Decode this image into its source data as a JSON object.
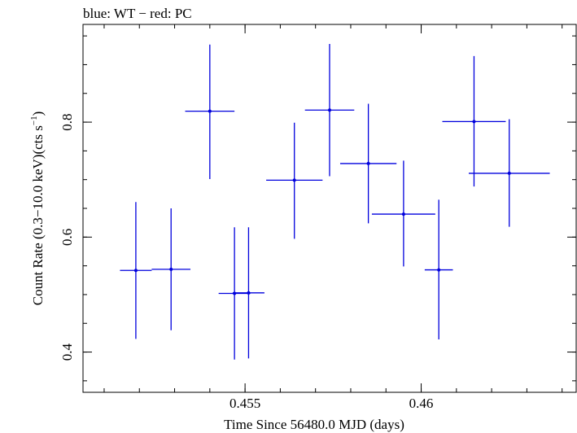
{
  "chart_data": {
    "type": "scatter",
    "title": "blue: WT − red: PC",
    "xlabel": "Time Since 56480.0 MJD (days)",
    "ylabel": "Count Rate (0.3−10.0 keV)(cts s",
    "ylabel_sup": "−1",
    "ylabel_close": ")",
    "xlim": [
      0.4504,
      0.4644
    ],
    "ylim": [
      0.33,
      0.97
    ],
    "x_ticks": [
      {
        "value": 0.455,
        "label": "0.455"
      },
      {
        "value": 0.46,
        "label": "0.46"
      }
    ],
    "x_minor_step": 0.001,
    "y_ticks": [
      {
        "value": 0.4,
        "label": "0.4"
      },
      {
        "value": 0.6,
        "label": "0.6"
      },
      {
        "value": 0.8,
        "label": "0.8"
      }
    ],
    "y_minor_step": 0.05,
    "grid": false,
    "series": [
      {
        "color": "#0000dd",
        "points": [
          {
            "x": 0.4519,
            "y": 0.542,
            "xerr": 0.00045,
            "ylo": 0.423,
            "yhi": 0.661
          },
          {
            "x": 0.4529,
            "y": 0.544,
            "xerr": 0.00055,
            "ylo": 0.438,
            "yhi": 0.65
          },
          {
            "x": 0.454,
            "y": 0.819,
            "xerr": 0.0007,
            "ylo": 0.701,
            "yhi": 0.935
          },
          {
            "x": 0.4547,
            "y": 0.502,
            "xerr": 0.00045,
            "ylo": 0.387,
            "yhi": 0.617
          },
          {
            "x": 0.4551,
            "y": 0.503,
            "xerr": 0.00045,
            "ylo": 0.389,
            "yhi": 0.617
          },
          {
            "x": 0.4564,
            "y": 0.699,
            "xerr": 0.0008,
            "ylo": 0.597,
            "yhi": 0.799
          },
          {
            "x": 0.4574,
            "y": 0.821,
            "xerr": 0.0007,
            "ylo": 0.706,
            "yhi": 0.936
          },
          {
            "x": 0.4585,
            "y": 0.728,
            "xerr": 0.0008,
            "ylo": 0.624,
            "yhi": 0.832
          },
          {
            "x": 0.4595,
            "y": 0.64,
            "xerr": 0.0009,
            "ylo": 0.549,
            "yhi": 0.733
          },
          {
            "x": 0.4605,
            "y": 0.543,
            "xerr": 0.0004,
            "ylo": 0.422,
            "yhi": 0.665
          },
          {
            "x": 0.4615,
            "y": 0.801,
            "xerr": 0.0009,
            "ylo": 0.688,
            "yhi": 0.915
          },
          {
            "x": 0.4625,
            "y": 0.711,
            "xerr": 0.00115,
            "ylo": 0.618,
            "yhi": 0.805
          }
        ]
      }
    ]
  }
}
